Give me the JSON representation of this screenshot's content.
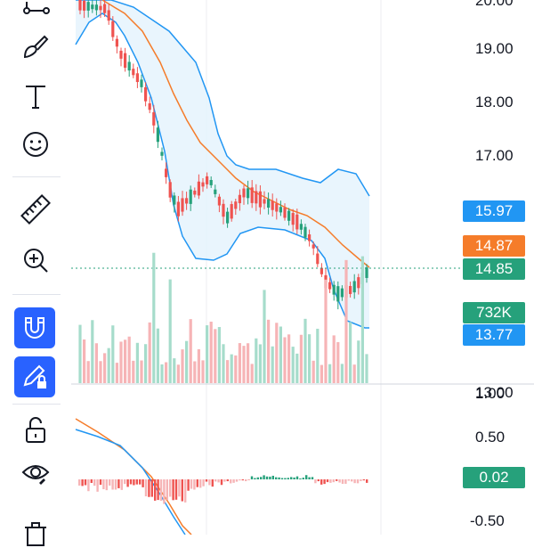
{
  "toolbar": {
    "tools": [
      {
        "icon": "lines-tool-icon",
        "active": false
      },
      {
        "icon": "brush-icon",
        "active": false
      },
      {
        "icon": "text-icon",
        "active": false
      },
      {
        "icon": "emoji-icon",
        "active": false
      },
      {
        "icon": "ruler-icon",
        "active": false
      },
      {
        "icon": "zoom-in-icon",
        "active": false
      },
      {
        "icon": "magnet-icon",
        "active": true
      },
      {
        "icon": "lock-drawings-icon",
        "active": true
      },
      {
        "icon": "unlock-icon",
        "active": false
      },
      {
        "icon": "eye-icon",
        "active": false
      },
      {
        "icon": "trash-icon",
        "active": false
      }
    ],
    "accent": "#2962ff"
  },
  "price_axis": {
    "labels": [
      "20.00",
      "19.00",
      "18.00",
      "17.00",
      "13.00"
    ]
  },
  "badges": {
    "upper_band": {
      "text": "15.97",
      "color": "#2196f3"
    },
    "middle_band": {
      "text": "14.87",
      "color": "#f57c2a"
    },
    "last_price": {
      "text": "14.85",
      "color": "#26a17b"
    },
    "volume": {
      "text": "732K",
      "color": "#26a17b"
    },
    "lower_band": {
      "text": "13.77",
      "color": "#2196f3"
    },
    "macd": {
      "text": "0.02",
      "color": "#26a17b"
    }
  },
  "macd_axis": {
    "labels": [
      "1.00",
      "0.50",
      "-0.50"
    ]
  },
  "colors": {
    "up": "#26a17b",
    "down": "#ef5350",
    "band": "#2196f3",
    "ma": "#f57c2a",
    "band_fill": "#e3f2fd"
  }
}
